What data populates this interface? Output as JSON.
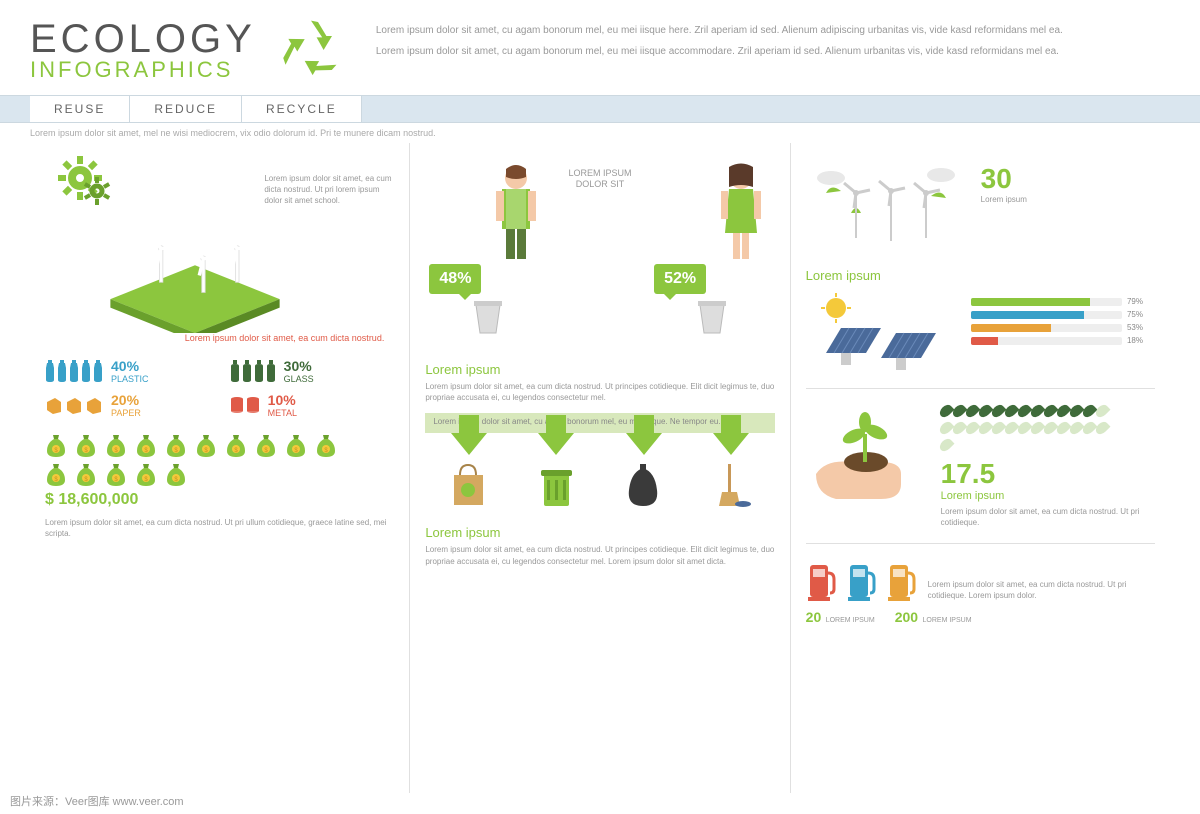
{
  "header": {
    "title": "ECOLOGY",
    "subtitle": "INFOGRAPHICS",
    "description": "Lorem ipsum dolor sit amet, cu agam bonorum mel, eu mei iisque here. Zril aperiam id sed. Alienum adipiscing urbanitas vis, vide kasd reformidans mel ea.",
    "sub2": "Lorem ipsum dolor sit amet, cu agam bonorum mel, eu mei iisque accommodare. Zril aperiam id sed. Alienum urbanitas vis, vide kasd reformidans mel ea."
  },
  "tabs": [
    "REUSE",
    "REDUCE",
    "RECYCLE"
  ],
  "subhead": "Lorem ipsum dolor sit amet, mel ne wisi mediocrem, vix odio dolorum id. Pri te munere dicam nostrud.",
  "colors": {
    "green": "#8cc63e",
    "green_dark": "#6aa02c",
    "blue": "#38a0c8",
    "orange": "#e8a23a",
    "red": "#e05a47",
    "grey": "#999",
    "leaf_dark": "#3f6b3a"
  },
  "col1": {
    "desc": "Lorem ipsum dolor sit amet, ea cum dicta nostrud. Ut pri lorem ipsum dolor sit amet school.",
    "red_note": "Lorem ipsum dolor sit amet, ea cum dicta nostrud.",
    "waste": [
      {
        "pct": "40%",
        "label": "PLASTIC",
        "color": "#38a0c8",
        "count": 5,
        "shape": "bottle"
      },
      {
        "pct": "30%",
        "label": "GLASS",
        "color": "#3f6b3a",
        "count": 4,
        "shape": "bottle2"
      },
      {
        "pct": "20%",
        "label": "PAPER",
        "color": "#e8a23a",
        "count": 3,
        "shape": "box"
      },
      {
        "pct": "10%",
        "label": "METAL",
        "color": "#e05a47",
        "count": 2,
        "shape": "can"
      }
    ],
    "money_count": 15,
    "money_total": "$ 18,600,000",
    "money_desc": "Lorem ipsum dolor sit amet, ea cum dicta nostrud. Ut pri ullum cotidieque, graece latine sed, mei scripta."
  },
  "col2": {
    "left_pct": "48%",
    "right_pct": "52%",
    "center_label": "LOREM IPSUM DOLOR SIT",
    "title": "Lorem ipsum",
    "desc": "Lorem ipsum dolor sit amet, ea cum dicta nostrud. Ut principes cotidieque. Elit dicit legimus te, duo propriae accusata ei, cu legendos consectetur mel.",
    "arrow_bar": "Lorem ipsum dolor sit amet, cu agam bonorum mel, eu mei iisque. Ne tempor eu.",
    "bottom_title": "Lorem ipsum",
    "bottom_desc": "Lorem ipsum dolor sit amet, ea cum dicta nostrud. Ut principes cotidieque. Elit dicit legimus te, duo propriae accusata ei, cu legendos consectetur mel. Lorem ipsum dolor sit amet dicta."
  },
  "col3": {
    "wind_stat": "30",
    "wind_label": "Lorem ipsum",
    "solar_title": "Lorem ipsum",
    "bars": [
      {
        "pct": 79,
        "color": "#8cc63e"
      },
      {
        "pct": 75,
        "color": "#38a0c8"
      },
      {
        "pct": 53,
        "color": "#e8a23a"
      },
      {
        "pct": 18,
        "color": "#e05a47"
      }
    ],
    "plant_stat": "17.5",
    "plant_label": "Lorem ipsum",
    "plant_desc": "Lorem ipsum dolor sit amet, ea cum dicta nostrud. Ut pri cotidieque.",
    "leaves_total": 27,
    "leaves_filled": 12,
    "fuel_pumps": [
      "#e05a47",
      "#38a0c8",
      "#e8a23a"
    ],
    "fuel_stats": [
      {
        "n": "20",
        "t": "LOREM IPSUM"
      },
      {
        "n": "200",
        "t": "LOREM IPSUM"
      }
    ],
    "fuel_desc": "Lorem ipsum dolor sit amet, ea cum dicta nostrud. Ut pri cotidieque. Lorem ipsum dolor."
  },
  "watermark": "图片来源：Veer图库  www.veer.com"
}
